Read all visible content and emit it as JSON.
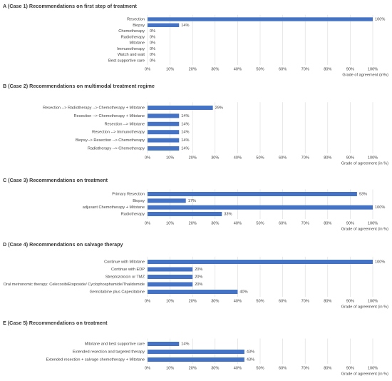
{
  "chart_data": [
    {
      "type": "bar",
      "orientation": "horizontal",
      "title": "A (Case 1) Recommendations on first step of treatment",
      "categories": [
        "Resection",
        "Biopsy",
        "Chemotherapy",
        "Radiotherapy",
        "Mitotane",
        "Immunotherapy",
        "Watch and wait",
        "Best supportive care"
      ],
      "values": [
        100,
        14,
        0,
        0,
        0,
        0,
        0,
        0
      ],
      "value_labels": [
        "100%",
        "14%",
        "0%",
        "0%",
        "0%",
        "0%",
        "0%",
        "0%"
      ],
      "color": "#4472c4",
      "xlabel": "Grade of agreement (in%)",
      "xlim": [
        0,
        100
      ],
      "xticks": [
        {
          "value": 0,
          "label": "0%"
        },
        {
          "value": 10,
          "label": "10%"
        },
        {
          "value": 20,
          "label": "20%"
        },
        {
          "value": 30,
          "label": "30%"
        },
        {
          "value": 40,
          "label": "40%"
        },
        {
          "value": 50,
          "label": "50%"
        },
        {
          "value": 60,
          "label": "60%"
        },
        {
          "value": 70,
          "label": "70%"
        },
        {
          "value": 80,
          "label": "80%"
        },
        {
          "value": 90,
          "label": "90%"
        },
        {
          "value": 100,
          "label": "100%"
        }
      ],
      "grid": true
    },
    {
      "type": "bar",
      "orientation": "horizontal",
      "title": "B (Case 2) Recommendations on multimodal treatment regime",
      "categories": [
        "Resection --> Radiotherapy --> Chemotherapy + Mitotane",
        "Resection --> Chemotherapy + Mitotane",
        "Resection --> Mitotane",
        "Resection --> Immunotherapy",
        "Biopsy--> Resection --> Chemotherapy",
        "Radiotherapy --> Chemotherapy"
      ],
      "values": [
        29,
        14,
        14,
        14,
        14,
        14
      ],
      "value_labels": [
        "29%",
        "14%",
        "14%",
        "14%",
        "14%",
        "14%"
      ],
      "color": "#4472c4",
      "xlabel": "Grade of agreement (in %)",
      "xlim": [
        0,
        100
      ],
      "xticks": [
        {
          "value": 0,
          "label": "0%"
        },
        {
          "value": 10,
          "label": "10%"
        },
        {
          "value": 20,
          "label": "20%"
        },
        {
          "value": 30,
          "label": "30%"
        },
        {
          "value": 40,
          "label": "40%"
        },
        {
          "value": 50,
          "label": "50%"
        },
        {
          "value": 60,
          "label": "60%"
        },
        {
          "value": 70,
          "label": "70%"
        },
        {
          "value": 80,
          "label": "80%"
        },
        {
          "value": 90,
          "label": "90%"
        },
        {
          "value": 100,
          "label": "100%"
        }
      ],
      "grid": true
    },
    {
      "type": "bar",
      "orientation": "horizontal",
      "title": "C (Case 3) Recommendations on treatment",
      "categories": [
        "Primary Resection",
        "Biopsy",
        "adjuvant Chemotherapy + Mitotane",
        "Radiotherapy"
      ],
      "values": [
        93,
        17,
        100,
        33
      ],
      "value_labels": [
        "93%",
        "17%",
        "100%",
        "33%"
      ],
      "color": "#4472c4",
      "xlabel": "Grade of agreement (in %)",
      "xlim": [
        0,
        100
      ],
      "xticks": [
        {
          "value": 0,
          "label": "0%"
        },
        {
          "value": 10,
          "label": "10%"
        },
        {
          "value": 20,
          "label": "20%"
        },
        {
          "value": 30,
          "label": "30%"
        },
        {
          "value": 40,
          "label": "40%"
        },
        {
          "value": 50,
          "label": "50%"
        },
        {
          "value": 60,
          "label": "60%"
        },
        {
          "value": 70,
          "label": "70%"
        },
        {
          "value": 80,
          "label": "80%"
        },
        {
          "value": 90,
          "label": "90%"
        },
        {
          "value": 100,
          "label": "100%"
        }
      ],
      "grid": true
    },
    {
      "type": "bar",
      "orientation": "horizontal",
      "title": "D (Case 4) Recommendations on salvage therapy",
      "categories": [
        "Continue with Mitotane",
        "Continue with EDP",
        "Streptozotocin or TMZ",
        "Oral metronomic therapy: Celecoxib/Etoposide/ Cyclophosphamide/Thalidomide",
        "Gemcitabine plus Capecitabine"
      ],
      "values": [
        100,
        20,
        20,
        20,
        40
      ],
      "value_labels": [
        "100%",
        "20%",
        "20%",
        "20%",
        "40%"
      ],
      "color": "#4472c4",
      "xlabel": "Grade of agreement (in %)",
      "xlim": [
        0,
        100
      ],
      "xticks": [
        {
          "value": 0,
          "label": "0%"
        },
        {
          "value": 10,
          "label": "10%"
        },
        {
          "value": 20,
          "label": "20%"
        },
        {
          "value": 30,
          "label": "30%"
        },
        {
          "value": 40,
          "label": "40%"
        },
        {
          "value": 50,
          "label": "50%"
        },
        {
          "value": 60,
          "label": "60%"
        },
        {
          "value": 70,
          "label": "70%"
        },
        {
          "value": 80,
          "label": "80%"
        },
        {
          "value": 90,
          "label": "90%"
        },
        {
          "value": 100,
          "label": "100%"
        }
      ],
      "grid": true
    },
    {
      "type": "bar",
      "orientation": "horizontal",
      "title": "E (Case 5) Recommendations on treatment",
      "categories": [
        "Mitotane and best supportive care",
        "Extended resection and targeted therapy",
        "Extended resection + salvage chemotherapy + Mitotane"
      ],
      "values": [
        14,
        43,
        43
      ],
      "value_labels": [
        "14%",
        "43%",
        "43%"
      ],
      "color": "#4472c4",
      "xlabel": "Grade of agreement (in %)",
      "xlim": [
        0,
        100
      ],
      "xticks": [
        {
          "value": 0,
          "label": "0%"
        },
        {
          "value": 10,
          "label": "10%"
        },
        {
          "value": 20,
          "label": "20%"
        },
        {
          "value": 30,
          "label": "30%"
        },
        {
          "value": 40,
          "label": "40%"
        },
        {
          "value": 50,
          "label": "50%"
        },
        {
          "value": 60,
          "label": "60%"
        },
        {
          "value": 70,
          "label": "70%"
        },
        {
          "value": 80,
          "label": "80%"
        },
        {
          "value": 90,
          "label": "90%"
        },
        {
          "value": 100,
          "label": "100%"
        }
      ],
      "grid": true
    }
  ]
}
